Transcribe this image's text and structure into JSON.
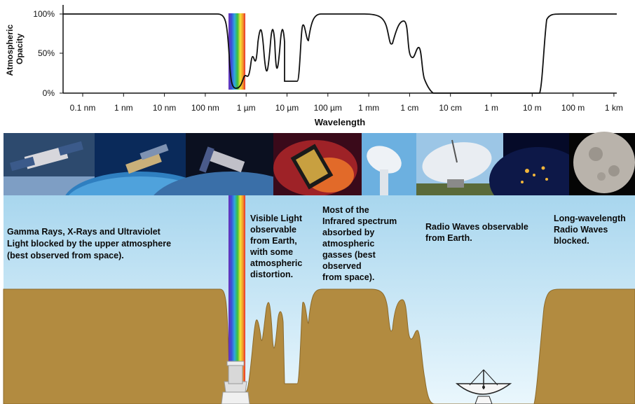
{
  "chart_data": {
    "type": "line",
    "ylabel": "Atmospheric Opacity",
    "xlabel": "Wavelength",
    "y_ticks": [
      "100%",
      "50%",
      "0%"
    ],
    "x_ticks": [
      "0.1 nm",
      "1 nm",
      "10 nm",
      "100 nm",
      "1 µm",
      "10 µm",
      "100 µm",
      "1 mm",
      "1 cm",
      "10 cm",
      "1 m",
      "10 m",
      "100 m",
      "1 km"
    ],
    "x_scale": "log",
    "ylim": [
      0,
      100
    ],
    "series": [
      {
        "x": [
          "0.1 nm",
          "100 nm",
          "300 nm",
          "400 nm",
          "700 nm",
          "1 µm",
          "1.4 µm",
          "1.9 µm",
          "2.7 µm",
          "4 µm",
          "6 µm",
          "8 µm",
          "14 µm",
          "20 µm",
          "30 µm",
          "100 µm",
          "1 mm",
          "2 mm",
          "4 mm",
          "1 cm",
          "2 cm",
          "5 cm",
          "10 m",
          "20 m",
          "1 km"
        ],
        "values": [
          100,
          100,
          100,
          5,
          8,
          20,
          45,
          85,
          70,
          85,
          60,
          85,
          15,
          85,
          60,
          100,
          100,
          60,
          85,
          40,
          55,
          0,
          0,
          100,
          100
        ]
      }
    ]
  },
  "images": [
    {
      "label": "X-ray satellite"
    },
    {
      "label": "Gamma-ray satellite over Earth"
    },
    {
      "label": "Hubble Space Telescope"
    },
    {
      "label": "Spitzer Space Telescope"
    },
    {
      "label": "Ground radio dish"
    },
    {
      "label": "Large radio telescope"
    },
    {
      "label": "Earth at night from space"
    },
    {
      "label": "Moon"
    }
  ],
  "annotations": {
    "gamma": [
      "Gamma Rays, X-Rays and Ultraviolet",
      "Light blocked by the upper atmosphere",
      "(best observed from space)."
    ],
    "visible": [
      "Visible Light",
      "observable",
      "from Earth,",
      "with some",
      "atmospheric",
      "distortion."
    ],
    "infrared": [
      "Most of the",
      "Infrared spectrum",
      "absorbed by",
      "atmospheric",
      "gasses (best",
      "observed",
      "from space)."
    ],
    "radio": [
      "Radio Waves observable",
      "from Earth."
    ],
    "longwave": [
      "Long-wavelength",
      "Radio Waves",
      "blocked."
    ]
  },
  "colors": {
    "sky_top": "#a8d6ee",
    "sky_bottom": "#e9f6fc",
    "ground": "#b28b40",
    "ground_edge": "#8c6a2a"
  }
}
